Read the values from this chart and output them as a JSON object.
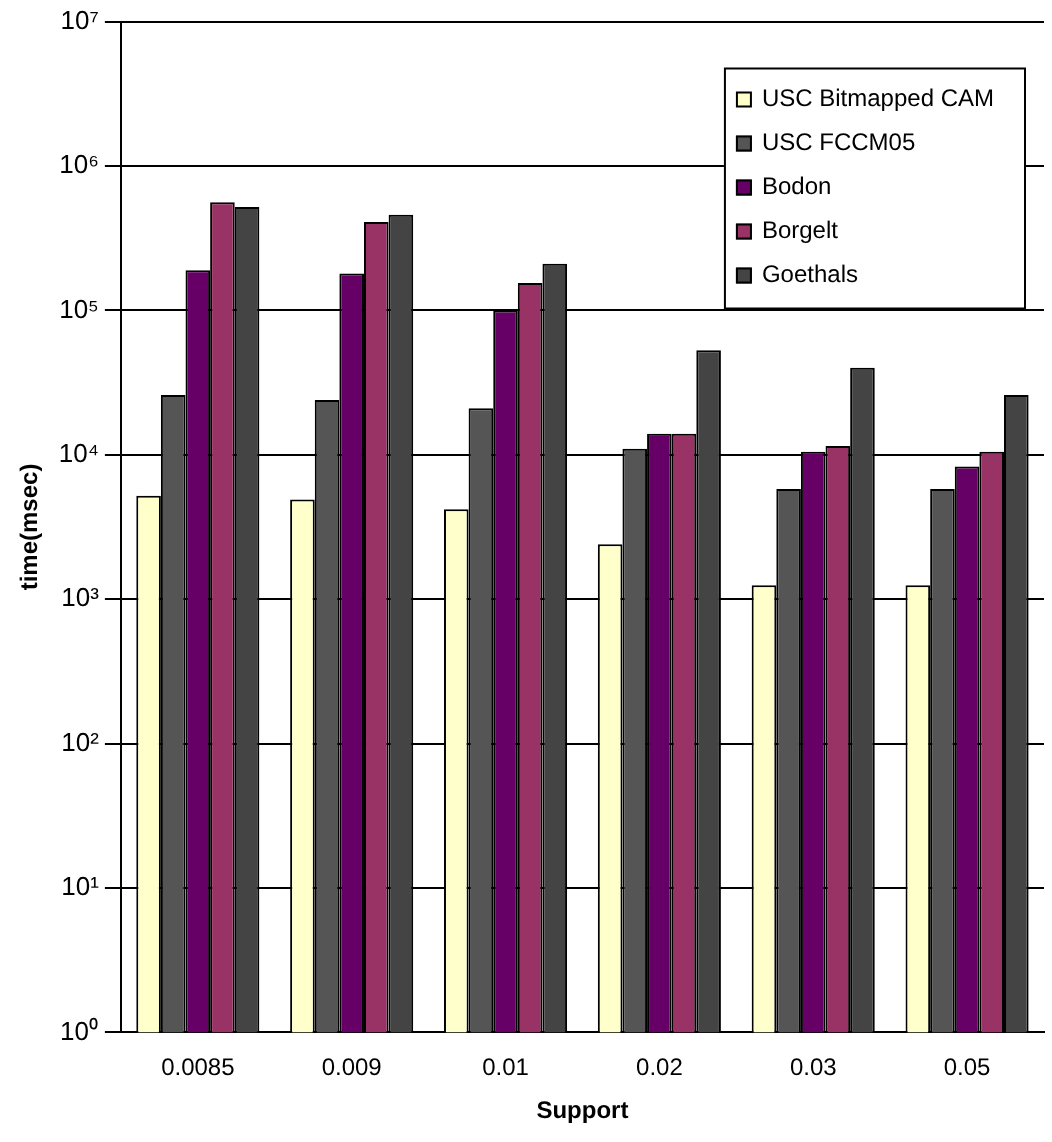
{
  "chart_data": {
    "type": "bar",
    "xlabel": "Support",
    "ylabel": "time(msec)",
    "categories": [
      "0.0085",
      "0.009",
      "0.01",
      "0.02",
      "0.03",
      "0.05"
    ],
    "series": [
      {
        "name": "USC Bitmapped CAM",
        "color": "#ffffcc",
        "values": [
          5200,
          4900,
          4200,
          2400,
          1250,
          1250
        ]
      },
      {
        "name": "USC FCCM05",
        "color": "#555555",
        "values": [
          26000,
          24000,
          21000,
          11000,
          5800,
          5800
        ]
      },
      {
        "name": "Bodon",
        "color": "#660066",
        "values": [
          190000,
          180000,
          100000,
          14000,
          10500,
          8300
        ]
      },
      {
        "name": "Borgelt",
        "color": "#993366",
        "values": [
          560000,
          410000,
          155000,
          14000,
          11500,
          10500
        ]
      },
      {
        "name": "Goethals",
        "color": "#444444",
        "values": [
          520000,
          460000,
          210000,
          53000,
          40000,
          26000
        ]
      }
    ],
    "log": true,
    "ylim": [
      1,
      10000000
    ],
    "yticks": [
      {
        "value": 1,
        "label": "10⁰"
      },
      {
        "value": 10,
        "label": "10¹"
      },
      {
        "value": 100,
        "label": "10²"
      },
      {
        "value": 1000,
        "label": "10³"
      },
      {
        "value": 10000,
        "label": "10⁴"
      },
      {
        "value": 100000,
        "label": "10⁵"
      },
      {
        "value": 1000000,
        "label": "10⁶"
      },
      {
        "value": 10000000,
        "label": "10⁷"
      }
    ],
    "grid": "y",
    "legend": "top right"
  }
}
